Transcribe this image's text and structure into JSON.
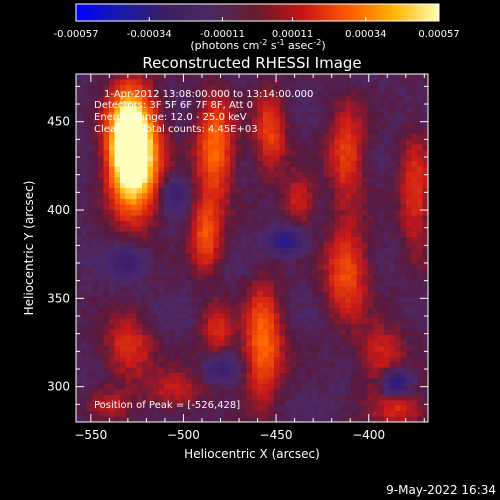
{
  "colorbar": {
    "tick_labels": [
      "-0.00057",
      "-0.00034",
      "-0.00011",
      "0.00011",
      "0.00034",
      "0.00057"
    ],
    "tick_values": [
      -0.00057,
      -0.00034,
      -0.00011,
      0.00011,
      0.00034,
      0.00057
    ],
    "units_label": "(photons cm",
    "units_sup1": "-2",
    "units_s": " s",
    "units_sup2": "-1",
    "units_asec": " asec",
    "units_sup3": "-2",
    "units_close": ")",
    "colors": [
      "#0000ff",
      "#1a1aaa",
      "#3b1f5f",
      "#4a2a60",
      "#6a1a2a",
      "#c81414",
      "#ff5a00",
      "#ffb400",
      "#ffffb4"
    ]
  },
  "chart_data": {
    "type": "heatmap",
    "title": "Reconstructed RHESSI Image",
    "xlabel": "Heliocentric X (arcsec)",
    "ylabel": "Heliocentric Y (arcsec)",
    "xlim": [
      -558,
      -368
    ],
    "ylim": [
      280,
      477
    ],
    "x_ticks": [
      -550,
      -500,
      -450,
      -400
    ],
    "y_ticks": [
      300,
      350,
      400,
      450
    ],
    "annotations": [
      "1-Apr-2012 13:08:00.000 to 13:14:00.000",
      "Detectors: 3F 5F 6F 7F 8F, Att 0",
      "Energy Range: 12.0 - 25.0 keV",
      "Clean      Total counts: 4.45E+03",
      "Position of Peak = [-526,428]"
    ],
    "peak_position": [
      -526,
      428
    ],
    "sources": [
      {
        "x": -526,
        "y": 430,
        "amp": 1.0,
        "sx": 9,
        "sy": 22
      },
      {
        "x": -530,
        "y": 440,
        "amp": 0.85,
        "sx": 7,
        "sy": 18
      },
      {
        "x": -483,
        "y": 435,
        "amp": 0.55,
        "sx": 7,
        "sy": 20
      },
      {
        "x": -453,
        "y": 445,
        "amp": 0.4,
        "sx": 6,
        "sy": 16
      },
      {
        "x": -412,
        "y": 432,
        "amp": 0.4,
        "sx": 7,
        "sy": 18
      },
      {
        "x": -375,
        "y": 410,
        "amp": 0.35,
        "sx": 6,
        "sy": 22
      },
      {
        "x": -488,
        "y": 385,
        "amp": 0.45,
        "sx": 6,
        "sy": 14
      },
      {
        "x": -412,
        "y": 365,
        "amp": 0.45,
        "sx": 8,
        "sy": 18
      },
      {
        "x": -530,
        "y": 322,
        "amp": 0.35,
        "sx": 9,
        "sy": 12
      },
      {
        "x": -482,
        "y": 332,
        "amp": 0.3,
        "sx": 6,
        "sy": 10
      },
      {
        "x": -457,
        "y": 325,
        "amp": 0.55,
        "sx": 7,
        "sy": 22
      },
      {
        "x": -393,
        "y": 318,
        "amp": 0.3,
        "sx": 9,
        "sy": 12
      },
      {
        "x": -383,
        "y": 288,
        "amp": 0.3,
        "sx": 10,
        "sy": 8
      },
      {
        "x": -505,
        "y": 298,
        "amp": 0.25,
        "sx": 12,
        "sy": 8
      },
      {
        "x": -438,
        "y": 405,
        "amp": 0.3,
        "sx": 6,
        "sy": 10
      },
      {
        "x": -540,
        "y": 290,
        "amp": 0.2,
        "sx": 8,
        "sy": 6
      }
    ],
    "negative_sources": [
      {
        "x": -445,
        "y": 382,
        "amp": 0.55,
        "sx": 6,
        "sy": 5
      },
      {
        "x": -385,
        "y": 302,
        "amp": 0.6,
        "sx": 5,
        "sy": 5
      },
      {
        "x": -480,
        "y": 310,
        "amp": 0.3,
        "sx": 6,
        "sy": 5
      },
      {
        "x": -530,
        "y": 370,
        "amp": 0.3,
        "sx": 6,
        "sy": 6
      },
      {
        "x": -505,
        "y": 410,
        "amp": 0.3,
        "sx": 5,
        "sy": 6
      }
    ]
  },
  "timestamp": "9-May-2022 16:34"
}
